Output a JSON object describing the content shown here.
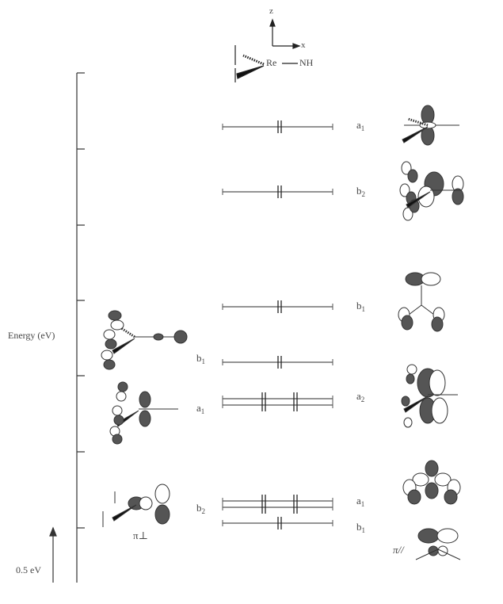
{
  "axis": {
    "y_label": "Energy (eV)",
    "scale_label": "0.5 eV"
  },
  "molecule": {
    "metal": "Re",
    "ligand": "NH",
    "axis_z": "z",
    "axis_x": "x"
  },
  "levels": [
    {
      "symbol": "a",
      "sub": "1",
      "electrons": 2
    },
    {
      "symbol": "b",
      "sub": "2",
      "electrons": 2
    },
    {
      "symbol": "b",
      "sub": "1",
      "electrons": 2
    },
    {
      "symbol": "",
      "sub": "",
      "electrons": 2
    },
    {
      "symbol": "a",
      "sub": "2",
      "electrons": 4
    },
    {
      "symbol": "a",
      "sub": "1",
      "electrons": 4
    },
    {
      "symbol": "b",
      "sub": "1",
      "electrons": 2
    }
  ],
  "left_labels": [
    {
      "symbol": "b",
      "sub": "1"
    },
    {
      "symbol": "a",
      "sub": "1"
    },
    {
      "symbol": "b",
      "sub": "2"
    }
  ],
  "fragment_labels": {
    "pi_perp": "π⊥",
    "pi_parallel": "π//"
  }
}
